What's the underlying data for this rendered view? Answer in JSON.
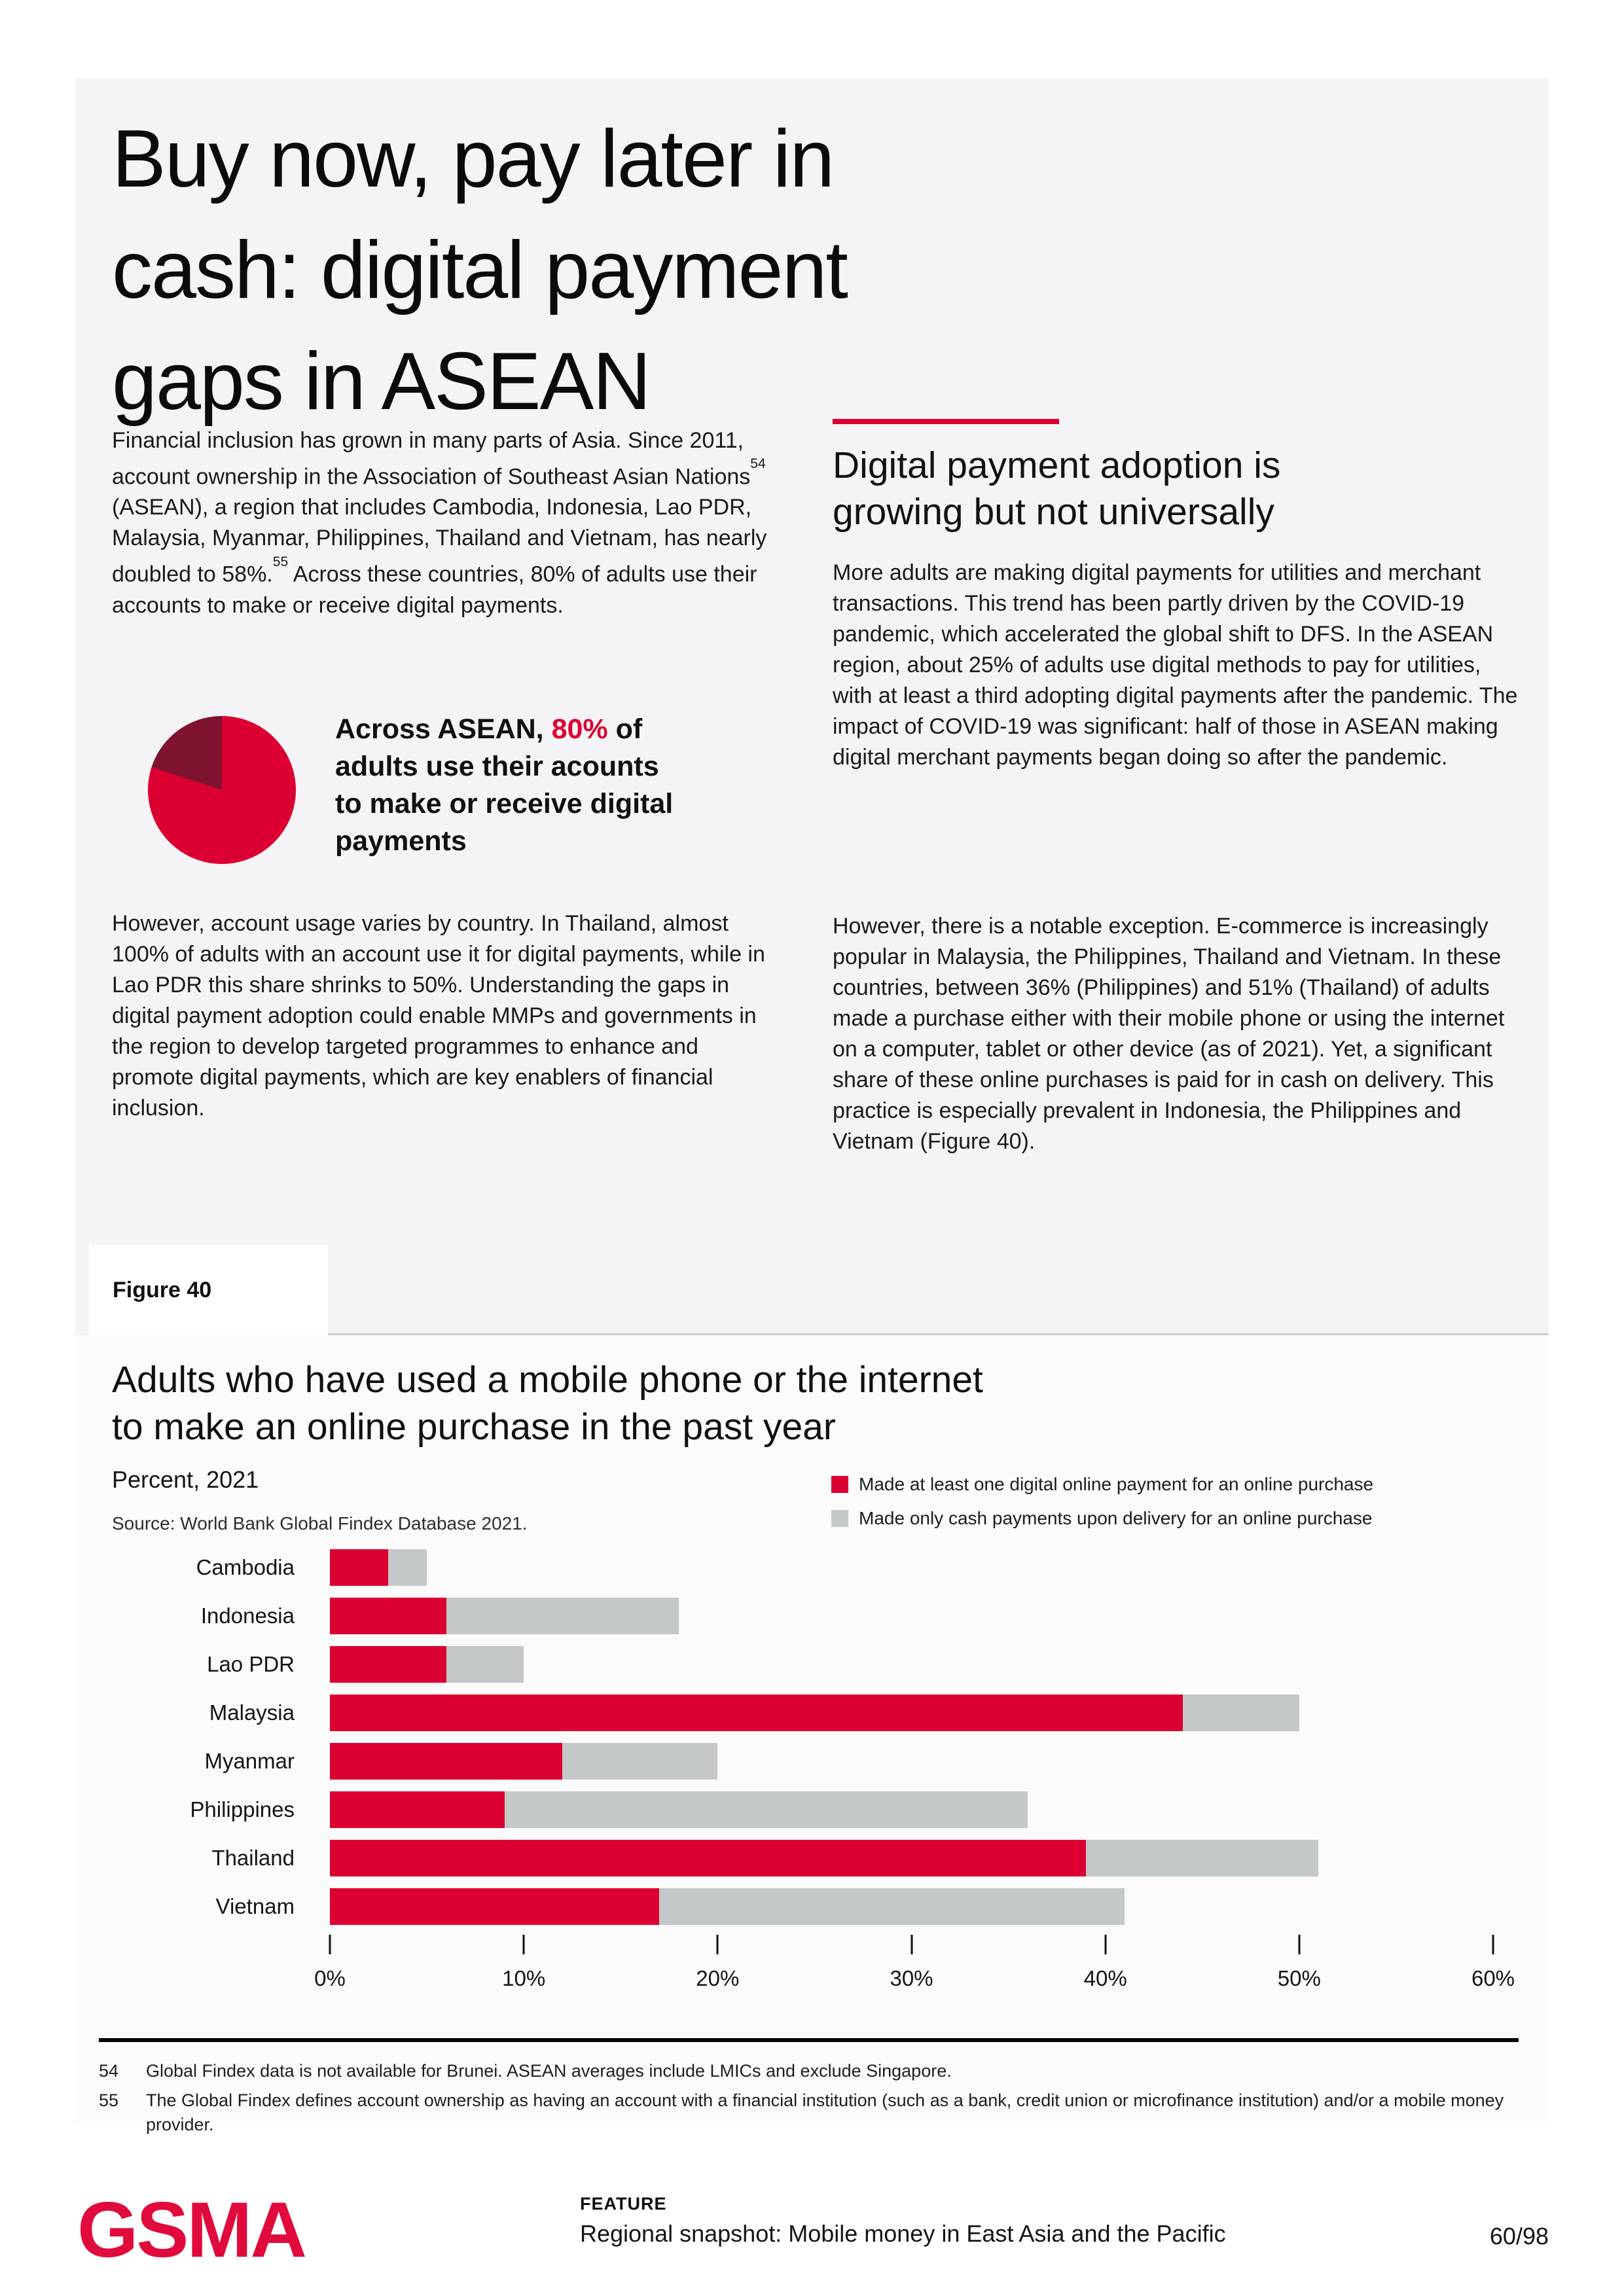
{
  "article": {
    "title": "Buy now, pay later in\ncash: digital payment\ngaps in ASEAN",
    "intro": {
      "part1": "Financial inclusion has grown in many parts of Asia. Since 2011, account ownership in the Association of Southeast Asian Nations",
      "footnote_ref1": "54",
      "part2": " (ASEAN), a region that includes Cambodia, Indonesia, Lao PDR, Malaysia, Myanmar, Philippines, Thailand and Vietnam, has nearly doubled to 58%.",
      "footnote_ref2": "55",
      "part3": " Across these countries, 80% of adults use their accounts to make or receive digital payments."
    },
    "callout": {
      "prefix": "Across ASEAN, ",
      "highlight": "80%",
      "suffix": " of\nadults use their acounts\nto make or receive digital\npayments",
      "pie": {
        "highlight_percent": 80,
        "highlight_color": "#DC0032",
        "remainder_color": "#7D132E"
      }
    },
    "paragraph2": "However, account usage varies by country. In Thailand, almost 100% of adults with an account use it for digital payments, while in Lao PDR this share shrinks to 50%. Understanding the gaps in digital payment adoption could enable MMPs and governments in the region to develop targeted programmes to enhance and promote digital payments, which are key enablers of financial inclusion.",
    "section": {
      "accent_color": "#DC0032",
      "heading": "Digital payment adoption is\ngrowing but not universally",
      "paragraph1": "More adults are making digital payments for utilities and merchant transactions. This trend has been partly driven by the COVID-19 pandemic, which accelerated the global shift to DFS. In the ASEAN region, about 25% of adults use digital methods to pay for utilities, with at least a third adopting digital payments after the pandemic. The impact of COVID-19 was significant: half of those in ASEAN making digital merchant payments began doing so after the pandemic.",
      "paragraph2": "However, there is a notable exception. E-commerce is increasingly popular in Malaysia, the Philippines, Thailand and Vietnam. In these countries, between 36% (Philippines) and 51% (Thailand) of adults made a purchase either with their mobile phone or using the internet on a computer, tablet or other device (as of 2021). Yet, a significant share of these online purchases is paid for in cash on delivery. This practice is especially prevalent in Indonesia, the Philippines and Vietnam (Figure 40)."
    }
  },
  "figure": {
    "label": "Figure 40",
    "title": "Adults who have used a mobile phone or the internet\nto make an online purchase in the past year",
    "subtitle": "Percent, 2021",
    "source": "Source: World Bank Global Findex Database 2021."
  },
  "chart_data": {
    "type": "bar",
    "orientation": "horizontal",
    "stacked": true,
    "title": "Adults who have used a mobile phone or the internet to make an online purchase in the past year",
    "unit": "Percent, 2021",
    "categories": [
      "Cambodia",
      "Indonesia",
      "Lao PDR",
      "Malaysia",
      "Myanmar",
      "Philippines",
      "Thailand",
      "Vietnam"
    ],
    "series": [
      {
        "name": "Made at least one digital online payment for an online purchase",
        "color": "#DC0032",
        "values": [
          3,
          6,
          6,
          44,
          12,
          9,
          39,
          17
        ]
      },
      {
        "name": "Made only cash payments upon delivery for an online purchase",
        "color": "#C4C8C8",
        "values": [
          2,
          12,
          4,
          6,
          8,
          27,
          12,
          24
        ]
      }
    ],
    "totals": [
      5,
      18,
      10,
      50,
      20,
      36,
      51,
      41
    ],
    "x_ticks": [
      "0%",
      "10%",
      "20%",
      "30%",
      "40%",
      "50%",
      "60%"
    ],
    "xlim": [
      0,
      60
    ],
    "grid": false,
    "legend_position": "top-right"
  },
  "footnotes": [
    {
      "num": "54",
      "text": "Global Findex data is not available for Brunei. ASEAN averages include LMICs and exclude Singapore."
    },
    {
      "num": "55",
      "text": "The Global Findex defines account ownership as having an account with a financial institution (such as a bank, credit union or microfinance institution) and/or a mobile money provider."
    }
  ],
  "footer": {
    "logo": "GSMA",
    "feature_label": "FEATURE",
    "title": "Regional snapshot: Mobile money in East Asia and the Pacific",
    "page": "60/98"
  }
}
